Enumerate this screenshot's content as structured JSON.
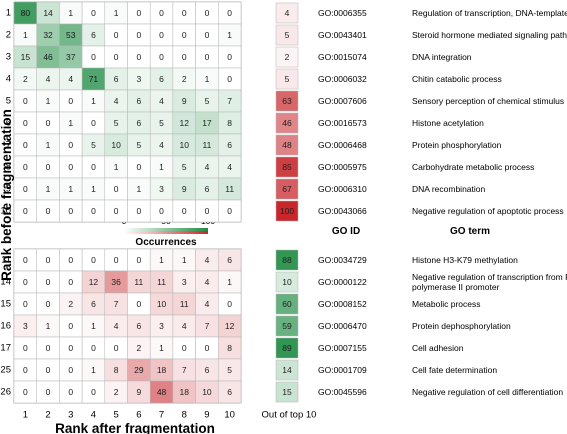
{
  "chart_data": {
    "type": "heatmap",
    "xlabel": "Rank after fragmentation",
    "ylabel": "Rank before fragmentation",
    "x_categories": [
      "1",
      "2",
      "3",
      "4",
      "5",
      "6",
      "7",
      "8",
      "9",
      "10"
    ],
    "extra_column_label": "Out of top 10",
    "color_scale": {
      "min": 0,
      "mid": 50,
      "max": 100,
      "low_color": "#ffffff",
      "top_panel_high_color": "#1e8b43",
      "bottom_panel_high_color": "#c8262b",
      "legend_title": "Occurrences",
      "tick_labels": [
        "0",
        "50",
        "100"
      ]
    },
    "column_headers": {
      "go_id": "GO ID",
      "go_term": "GO term"
    },
    "panels": [
      {
        "name": "top",
        "rows": [
          {
            "rank": "1",
            "values": [
              80,
              14,
              1,
              0,
              1,
              0,
              0,
              0,
              0,
              0
            ],
            "out_of_top10": 4,
            "go_id": "GO:0006355",
            "go_term": [
              "Regulation of transcription, DNA-templated"
            ]
          },
          {
            "rank": "2",
            "values": [
              1,
              32,
              53,
              6,
              0,
              0,
              0,
              0,
              0,
              1
            ],
            "out_of_top10": 5,
            "go_id": "GO:0043401",
            "go_term": [
              "Steroid hormone mediated signaling pathway"
            ]
          },
          {
            "rank": "3",
            "values": [
              15,
              46,
              37,
              0,
              0,
              0,
              0,
              0,
              0,
              0
            ],
            "out_of_top10": 2,
            "go_id": "GO:0015074",
            "go_term": [
              "DNA integration"
            ]
          },
          {
            "rank": "4",
            "values": [
              2,
              4,
              4,
              71,
              6,
              3,
              6,
              2,
              1,
              0
            ],
            "out_of_top10": 5,
            "go_id": "GO:0006032",
            "go_term": [
              "Chitin catabolic process"
            ]
          },
          {
            "rank": "5",
            "values": [
              0,
              1,
              0,
              1,
              4,
              6,
              4,
              9,
              5,
              7
            ],
            "out_of_top10": 63,
            "go_id": "GO:0007606",
            "go_term": [
              "Sensory perception of chemical stimulus"
            ]
          },
          {
            "rank": "6",
            "values": [
              0,
              0,
              1,
              0,
              5,
              6,
              5,
              12,
              17,
              8
            ],
            "out_of_top10": 46,
            "go_id": "GO:0016573",
            "go_term": [
              "Histone acetylation"
            ]
          },
          {
            "rank": "7",
            "values": [
              0,
              1,
              0,
              5,
              10,
              5,
              4,
              10,
              11,
              6
            ],
            "out_of_top10": 48,
            "go_id": "GO:0006468",
            "go_term": [
              "Protein phosphorylation"
            ]
          },
          {
            "rank": "8",
            "values": [
              0,
              0,
              0,
              0,
              1,
              0,
              1,
              5,
              4,
              4
            ],
            "out_of_top10": 85,
            "go_id": "GO:0005975",
            "go_term": [
              "Carbohydrate metabolic process"
            ]
          },
          {
            "rank": "9",
            "values": [
              0,
              1,
              1,
              1,
              0,
              1,
              3,
              9,
              6,
              11
            ],
            "out_of_top10": 67,
            "go_id": "GO:0006310",
            "go_term": [
              "DNA recombination"
            ]
          },
          {
            "rank": "10",
            "values": [
              0,
              0,
              0,
              0,
              0,
              0,
              0,
              0,
              0,
              0
            ],
            "out_of_top10": 100,
            "go_id": "GO:0043066",
            "go_term": [
              "Negative regulation of apoptotic process"
            ]
          }
        ]
      },
      {
        "name": "bottom",
        "rows": [
          {
            "rank": "11",
            "values": [
              0,
              0,
              0,
              0,
              0,
              0,
              1,
              1,
              4,
              6
            ],
            "out_of_top10": 88,
            "go_id": "GO:0034729",
            "go_term": [
              "Histone H3-K79 methylation"
            ]
          },
          {
            "rank": "14",
            "values": [
              0,
              0,
              0,
              12,
              36,
              11,
              11,
              3,
              4,
              1
            ],
            "out_of_top10": 10,
            "go_id": "GO:0000122",
            "go_term": [
              "Negative regulation of transcription from RNA",
              "polymerase II promoter"
            ]
          },
          {
            "rank": "15",
            "values": [
              0,
              0,
              2,
              6,
              7,
              0,
              10,
              11,
              4,
              0
            ],
            "out_of_top10": 60,
            "go_id": "GO:0008152",
            "go_term": [
              "Metabolic process"
            ]
          },
          {
            "rank": "16",
            "values": [
              3,
              1,
              0,
              1,
              4,
              6,
              3,
              4,
              7,
              12
            ],
            "out_of_top10": 59,
            "go_id": "GO:0006470",
            "go_term": [
              "Protein dephosphorylation"
            ]
          },
          {
            "rank": "17",
            "values": [
              0,
              0,
              0,
              0,
              0,
              2,
              1,
              0,
              0,
              8
            ],
            "out_of_top10": 89,
            "go_id": "GO:0007155",
            "go_term": [
              "Cell adhesion"
            ]
          },
          {
            "rank": "25",
            "values": [
              0,
              0,
              0,
              1,
              8,
              29,
              18,
              7,
              6,
              5
            ],
            "out_of_top10": 14,
            "go_id": "GO:0001709",
            "go_term": [
              "Cell fate determination"
            ]
          },
          {
            "rank": "26",
            "values": [
              0,
              0,
              0,
              0,
              2,
              9,
              48,
              18,
              10,
              6
            ],
            "out_of_top10": 15,
            "go_id": "GO:0045596",
            "go_term": [
              "Negative regulation of cell differentiation"
            ]
          }
        ]
      }
    ]
  }
}
